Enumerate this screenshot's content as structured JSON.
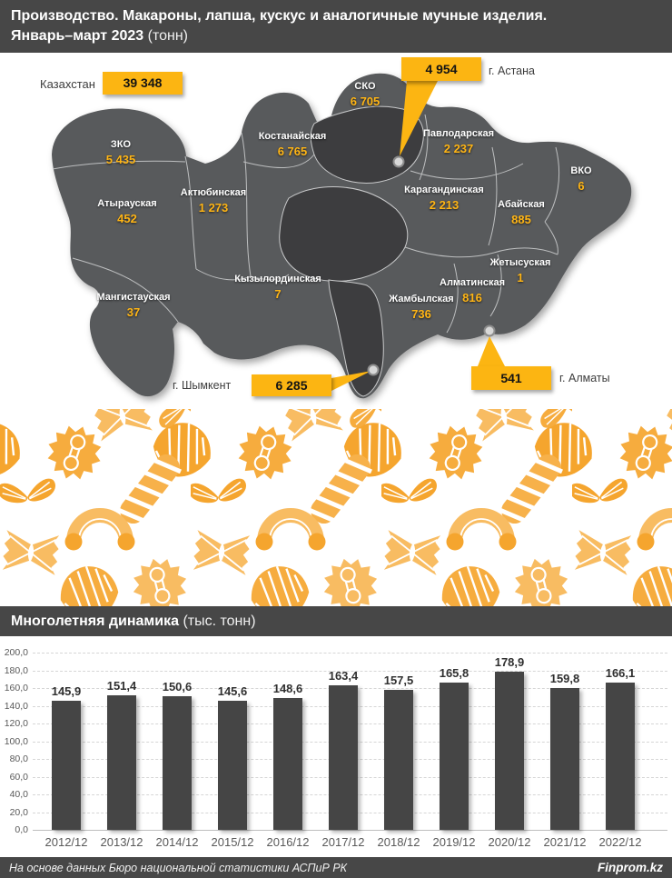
{
  "header": {
    "line1": "Производство. Макароны, лапша, кускус и аналогичные мучные изделия.",
    "line2_bold": "Январь–март 2023",
    "line2_unit": "(тонн)"
  },
  "map": {
    "total": {
      "label": "Казахстан",
      "value": "39 348"
    },
    "regions": [
      {
        "id": "sko",
        "name": "СКО",
        "value": "6 705"
      },
      {
        "id": "kostanay",
        "name": "Костанайская",
        "value": "6 765"
      },
      {
        "id": "zko",
        "name": "ЗКО",
        "value": "5 435"
      },
      {
        "id": "atyrau",
        "name": "Атырауская",
        "value": "452"
      },
      {
        "id": "aktobe",
        "name": "Актюбинская",
        "value": "1 273"
      },
      {
        "id": "mangystau",
        "name": "Мангистауская",
        "value": "37"
      },
      {
        "id": "kyzylorda",
        "name": "Кызылординская",
        "value": "7"
      },
      {
        "id": "pavlodar",
        "name": "Павлодарская",
        "value": "2 237"
      },
      {
        "id": "karaganda",
        "name": "Карагандинская",
        "value": "2 213"
      },
      {
        "id": "abay",
        "name": "Абайская",
        "value": "885"
      },
      {
        "id": "vko",
        "name": "ВКО",
        "value": "6"
      },
      {
        "id": "zhetysu",
        "name": "Жетысуская",
        "value": "1"
      },
      {
        "id": "almaty_obl",
        "name": "Алматинская",
        "value": "816"
      },
      {
        "id": "zhambyl",
        "name": "Жамбылская",
        "value": "736"
      }
    ],
    "cities": [
      {
        "id": "astana",
        "label": "г. Астана",
        "value": "4 954"
      },
      {
        "id": "almaty",
        "label": "г. Алматы",
        "value": "541"
      },
      {
        "id": "shymkent",
        "label": "г. Шымкент",
        "value": "6 285"
      }
    ]
  },
  "decor": {
    "pasta_shapes": [
      "farfalle",
      "conchiglie",
      "creste-spiky",
      "fusilli",
      "elbow-macaroni",
      "bow"
    ]
  },
  "section2": {
    "title_bold": "Многолетняя динамика",
    "title_unit": "(тыс. тонн)"
  },
  "chart_data": {
    "type": "bar",
    "title": "Многолетняя динамика",
    "ylabel": "тыс. тонн",
    "categories": [
      "2012/12",
      "2013/12",
      "2014/12",
      "2015/12",
      "2016/12",
      "2017/12",
      "2018/12",
      "2019/12",
      "2020/12",
      "2021/12",
      "2022/12"
    ],
    "values": [
      145.9,
      151.4,
      150.6,
      145.6,
      148.6,
      163.4,
      157.5,
      165.8,
      178.9,
      159.8,
      166.1
    ],
    "value_labels": [
      "145,9",
      "151,4",
      "150,6",
      "145,6",
      "148,6",
      "163,4",
      "157,5",
      "165,8",
      "178,9",
      "159,8",
      "166,1"
    ],
    "ylim": [
      0,
      200
    ],
    "ytick_step": 20,
    "ytick_labels": [
      "0,0",
      "20,0",
      "40,0",
      "60,0",
      "80,0",
      "100,0",
      "120,0",
      "140,0",
      "160,0",
      "180,0",
      "200,0"
    ],
    "grid": "horizontal-dashed",
    "legend": "none"
  },
  "footer": {
    "source": "На основе данных Бюро национальной статистики АСПиР РК",
    "brand": "Finprom.kz"
  },
  "colors": {
    "accent_yellow": "#FCB512",
    "map_region": "#595A5C",
    "map_region_dark": "#3D3D3F",
    "bar": "#454545",
    "header_bg": "#474747",
    "value_text": "#FFB515",
    "pasta_light": "#F8BC62",
    "pasta_dark": "#F5A52E"
  }
}
